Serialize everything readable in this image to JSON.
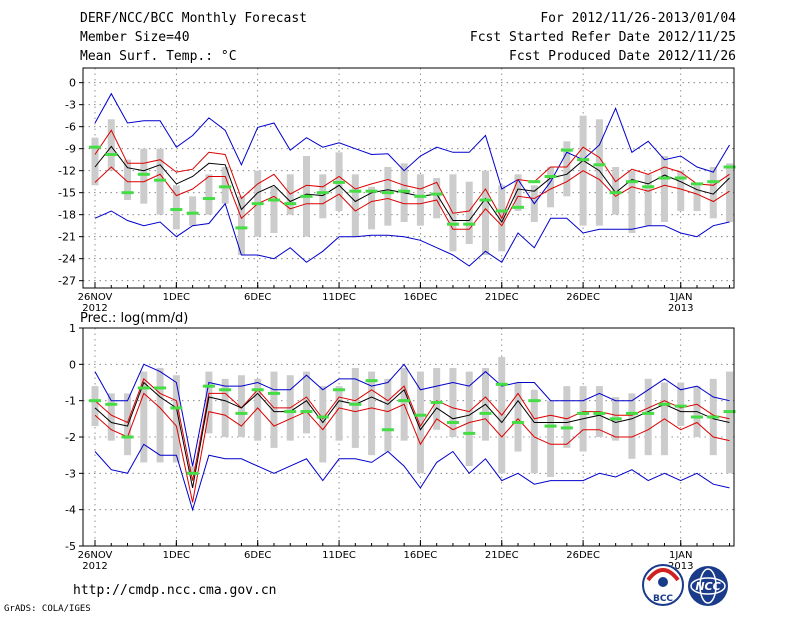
{
  "header": {
    "title": "DERF/NCC/BCC Monthly Forecast",
    "member": "Member Size=40",
    "variable": "Mean Surf. Temp.: °C",
    "period": "For 2012/11/26-2013/01/04",
    "start": "Fcst Started Refer Date 2012/11/25",
    "produced": "Fcst Produced Date 2012/11/26"
  },
  "footer": {
    "url": "http://cmdp.ncc.cma.gov.cn",
    "grads": "GrADS: COLA/IGES"
  },
  "logos": {
    "bcc": "BCC",
    "ncc": "NCC"
  },
  "colors": {
    "max_min": "#0000cc",
    "spread": "#dd0000",
    "mean": "#000000",
    "obs": "#44dd44",
    "bars": "#cccccc"
  },
  "chart_data": [
    {
      "type": "line",
      "title": "Mean Surf. Temp.: °C",
      "ylim": [
        -28,
        2
      ],
      "yticks": [
        0,
        -3,
        -6,
        -9,
        -12,
        -15,
        -18,
        -21,
        -24,
        -27
      ],
      "xtick_days": [
        1,
        6,
        11,
        16,
        21,
        26,
        31,
        37
      ],
      "xtick_labels": [
        "26NOV",
        "1DEC",
        "6DEC",
        "11DEC",
        "16DEC",
        "21DEC",
        "26DEC",
        "1JAN"
      ],
      "year_labels": [
        {
          "day": 1,
          "label": "2012"
        },
        {
          "day": 37,
          "label": "2013"
        }
      ],
      "days": 40,
      "series": [
        {
          "name": "max",
          "values": [
            -5.5,
            -1.5,
            -5.5,
            -5.2,
            -5.2,
            -8.8,
            -7.2,
            -4.8,
            -6.5,
            -11.2,
            -6.1,
            -5.5,
            -9.2,
            -7.5,
            -8.8,
            -8.2,
            -9.0,
            -9.8,
            -9.7,
            -12.0,
            -10.0,
            -8.8,
            -9.5,
            -9.5,
            -7.2,
            -14.5,
            -13.2,
            -16.5,
            -13.5,
            -9.5,
            -10.5,
            -8.5,
            -3.5,
            -9.5,
            -8.0,
            -10.5,
            -10.0,
            -11.5,
            -12.2,
            -8.5
          ]
        },
        {
          "name": "upper",
          "values": [
            -9.8,
            -6.5,
            -11.0,
            -11.0,
            -10.5,
            -12.2,
            -11.8,
            -9.5,
            -9.8,
            -15.8,
            -13.8,
            -12.5,
            -15.2,
            -14.0,
            -14.2,
            -12.8,
            -14.5,
            -13.8,
            -13.2,
            -14.0,
            -14.5,
            -13.6,
            -17.8,
            -17.5,
            -14.5,
            -18.5,
            -13.2,
            -13.5,
            -11.5,
            -11.5,
            -8.8,
            -10.2,
            -13.5,
            -11.8,
            -12.5,
            -11.5,
            -12.2,
            -13.8,
            -14.0,
            -12.5
          ]
        },
        {
          "name": "mean",
          "values": [
            -11.5,
            -8.7,
            -11.6,
            -12.0,
            -11.2,
            -13.8,
            -12.8,
            -11.0,
            -11.2,
            -17.3,
            -15.0,
            -14.0,
            -16.2,
            -15.2,
            -15.4,
            -14.0,
            -16.2,
            -15.0,
            -14.6,
            -15.0,
            -15.5,
            -15.2,
            -18.8,
            -18.8,
            -15.8,
            -19.0,
            -14.5,
            -14.8,
            -13.0,
            -12.5,
            -10.6,
            -12.0,
            -15.0,
            -13.2,
            -13.8,
            -12.6,
            -13.5,
            -14.6,
            -15.2,
            -13.0
          ]
        },
        {
          "name": "lower",
          "values": [
            -13.6,
            -11.5,
            -13.5,
            -13.5,
            -12.5,
            -15.4,
            -14.5,
            -12.8,
            -12.8,
            -18.5,
            -16.5,
            -15.5,
            -17.2,
            -16.5,
            -16.5,
            -15.2,
            -17.5,
            -16.2,
            -15.8,
            -16.5,
            -16.5,
            -16.0,
            -20.0,
            -20.0,
            -17.2,
            -19.5,
            -15.5,
            -15.8,
            -14.5,
            -13.5,
            -12.0,
            -13.2,
            -15.5,
            -14.2,
            -14.8,
            -14.0,
            -14.5,
            -15.2,
            -16.2,
            -14.8
          ]
        },
        {
          "name": "min",
          "values": [
            -18.5,
            -17.5,
            -18.8,
            -19.5,
            -19.0,
            -21.0,
            -19.5,
            -19.2,
            -16.5,
            -23.5,
            -23.5,
            -24.0,
            -22.5,
            -24.5,
            -23.0,
            -21.0,
            -21.0,
            -20.8,
            -20.8,
            -21.0,
            -21.5,
            -22.5,
            -23.5,
            -25.0,
            -23.0,
            -24.5,
            -20.5,
            -22.5,
            -18.5,
            -18.5,
            -20.5,
            -20.0,
            -20.0,
            -20.0,
            -19.5,
            -19.5,
            -20.5,
            -21.0,
            -19.5,
            -19.0
          ]
        },
        {
          "name": "obs",
          "values": [
            -8.8,
            -9.8,
            -15.0,
            -12.5,
            -13.3,
            -17.3,
            -17.8,
            -15.8,
            -14.2,
            -19.8,
            -16.5,
            -16.0,
            -16.5,
            -15.5,
            -15.0,
            -13.6,
            -14.8,
            -14.8,
            -15.0,
            -14.8,
            -15.5,
            -15.2,
            -19.3,
            -19.3,
            -16.0,
            -17.5,
            -17.0,
            -13.5,
            -12.8,
            -9.2,
            -10.5,
            -11.2,
            -15.0,
            -13.5,
            -14.2,
            -13.0,
            -13.0,
            -13.8,
            -13.5,
            -11.5
          ]
        },
        {
          "name": "bar_top",
          "values": [
            -7.5,
            -5.0,
            -10.5,
            -9.0,
            -9.0,
            -14.0,
            -15.5,
            -12.5,
            -11.5,
            -15.5,
            -12.0,
            -14.2,
            -12.5,
            -10.0,
            -12.5,
            -9.5,
            -12.5,
            -14.2,
            -11.5,
            -11.0,
            -12.5,
            -13.0,
            -12.5,
            -13.5,
            -12.0,
            -14.0,
            -12.5,
            -14.0,
            -11.5,
            -8.0,
            -4.5,
            -5.0,
            -11.5,
            -12.0,
            -12.5,
            -10.0,
            -12.0,
            -14.0,
            -11.5,
            -11.0
          ]
        },
        {
          "name": "bar_bottom",
          "values": [
            -14.0,
            -12.0,
            -16.0,
            -16.5,
            -18.0,
            -20.0,
            -19.5,
            -18.0,
            -16.5,
            -23.5,
            -21.0,
            -20.5,
            -18.0,
            -21.0,
            -18.5,
            -17.5,
            -21.0,
            -20.0,
            -19.5,
            -19.0,
            -19.5,
            -18.5,
            -23.0,
            -22.0,
            -23.5,
            -23.0,
            -17.5,
            -19.0,
            -17.0,
            -15.5,
            -19.5,
            -19.5,
            -18.0,
            -20.5,
            -19.5,
            -19.0,
            -17.5,
            -17.5,
            -18.5,
            -19.0
          ]
        }
      ]
    },
    {
      "type": "line",
      "title": "Prec.: log(mm/d)",
      "ylim": [
        -5,
        1
      ],
      "yticks": [
        1,
        0,
        -1,
        -2,
        -3,
        -4,
        -5
      ],
      "xtick_days": [
        1,
        6,
        11,
        16,
        21,
        26,
        31,
        37
      ],
      "xtick_labels": [
        "26NOV",
        "1DEC",
        "6DEC",
        "11DEC",
        "16DEC",
        "21DEC",
        "26DEC",
        "1JAN"
      ],
      "year_labels": [
        {
          "day": 1,
          "label": "2012"
        },
        {
          "day": 37,
          "label": "2013"
        }
      ],
      "days": 40,
      "series": [
        {
          "name": "max",
          "values": [
            -0.2,
            -1.0,
            -1.0,
            0.0,
            -0.2,
            -0.5,
            -2.8,
            -0.5,
            -0.6,
            -0.6,
            -0.5,
            -0.7,
            -0.7,
            -0.3,
            -0.7,
            -0.4,
            -0.4,
            -0.6,
            -0.5,
            0.0,
            -0.7,
            -0.6,
            -0.5,
            -0.6,
            -0.2,
            -0.6,
            -0.5,
            -0.5,
            -1.0,
            -1.0,
            -1.0,
            -0.8,
            -1.0,
            -1.0,
            -0.7,
            -0.4,
            -0.7,
            -0.6,
            -0.9,
            -1.0
          ]
        },
        {
          "name": "upper",
          "values": [
            -1.0,
            -1.4,
            -1.6,
            -0.4,
            -0.8,
            -1.0,
            -3.2,
            -0.8,
            -0.8,
            -1.2,
            -0.7,
            -1.2,
            -1.2,
            -0.9,
            -1.5,
            -0.9,
            -1.0,
            -0.7,
            -1.0,
            -0.6,
            -1.7,
            -1.0,
            -1.2,
            -1.3,
            -0.9,
            -1.4,
            -0.8,
            -1.5,
            -1.4,
            -1.5,
            -1.3,
            -1.3,
            -1.4,
            -1.4,
            -1.2,
            -1.0,
            -1.2,
            -1.1,
            -1.4,
            -1.5
          ]
        },
        {
          "name": "mean",
          "values": [
            -1.2,
            -1.6,
            -1.7,
            -0.5,
            -0.9,
            -1.2,
            -3.4,
            -0.9,
            -1.0,
            -1.2,
            -0.8,
            -1.3,
            -1.3,
            -1.0,
            -1.6,
            -1.0,
            -1.1,
            -0.9,
            -1.1,
            -0.7,
            -1.8,
            -1.2,
            -1.5,
            -1.4,
            -1.1,
            -1.6,
            -1.0,
            -1.6,
            -1.6,
            -1.6,
            -1.5,
            -1.4,
            -1.6,
            -1.5,
            -1.3,
            -1.1,
            -1.3,
            -1.3,
            -1.5,
            -1.6
          ]
        },
        {
          "name": "lower",
          "values": [
            -1.4,
            -1.8,
            -2.0,
            -0.8,
            -1.2,
            -1.7,
            -3.8,
            -1.3,
            -1.4,
            -1.7,
            -1.2,
            -1.7,
            -1.5,
            -1.3,
            -1.8,
            -1.2,
            -1.3,
            -1.2,
            -1.3,
            -1.1,
            -2.2,
            -1.5,
            -1.8,
            -1.6,
            -1.5,
            -2.0,
            -1.5,
            -2.0,
            -2.2,
            -2.2,
            -1.8,
            -1.8,
            -2.0,
            -2.0,
            -1.8,
            -1.5,
            -1.8,
            -1.6,
            -2.0,
            -2.1
          ]
        },
        {
          "name": "min",
          "values": [
            -2.4,
            -2.9,
            -3.0,
            -2.2,
            -2.5,
            -2.5,
            -4.0,
            -2.5,
            -2.6,
            -2.6,
            -2.8,
            -3.0,
            -2.8,
            -2.6,
            -3.2,
            -2.6,
            -2.6,
            -2.7,
            -2.4,
            -2.8,
            -3.4,
            -2.7,
            -2.4,
            -3.0,
            -2.6,
            -3.2,
            -3.0,
            -3.3,
            -3.2,
            -3.2,
            -3.2,
            -3.0,
            -3.1,
            -2.9,
            -3.2,
            -3.0,
            -3.2,
            -3.0,
            -3.3,
            -3.4
          ]
        },
        {
          "name": "obs",
          "values": [
            -1.0,
            -1.1,
            -2.0,
            -0.65,
            -0.65,
            -1.2,
            -3.0,
            -0.6,
            -0.7,
            -1.35,
            -0.7,
            -0.8,
            -1.3,
            -1.3,
            -1.45,
            -0.7,
            -1.1,
            -0.45,
            -1.8,
            -1.0,
            -1.4,
            -1.05,
            -1.6,
            -1.9,
            -1.35,
            -0.55,
            -1.6,
            -1.0,
            -1.7,
            -1.75,
            -1.35,
            -1.35,
            -1.5,
            -1.35,
            -1.35,
            -1.1,
            -1.15,
            -1.45,
            -1.45,
            -1.3
          ]
        },
        {
          "name": "bar_top",
          "values": [
            -0.6,
            -0.8,
            -0.8,
            -0.2,
            -0.1,
            -0.3,
            -2.8,
            -0.2,
            -0.4,
            -0.3,
            -0.4,
            -0.2,
            -0.3,
            -0.2,
            -0.6,
            -0.6,
            -0.1,
            -0.2,
            -0.4,
            -0.1,
            -0.2,
            -0.1,
            -0.1,
            -0.2,
            -0.1,
            0.2,
            -0.5,
            -0.7,
            -1.0,
            -0.6,
            -0.6,
            -0.6,
            -0.9,
            -0.8,
            -0.4,
            -0.5,
            -0.5,
            -0.6,
            -0.4,
            -0.2
          ]
        },
        {
          "name": "bar_bottom",
          "values": [
            -1.7,
            -2.1,
            -2.5,
            -2.7,
            -2.7,
            -2.7,
            -3.0,
            -1.9,
            -2.0,
            -2.0,
            -2.1,
            -2.3,
            -2.1,
            -1.9,
            -2.7,
            -2.1,
            -2.3,
            -2.5,
            -2.4,
            -2.1,
            -3.0,
            -1.8,
            -2.0,
            -2.8,
            -2.1,
            -3.0,
            -2.4,
            -3.0,
            -3.1,
            -2.3,
            -2.4,
            -2.0,
            -2.1,
            -2.6,
            -2.5,
            -2.5,
            -1.7,
            -2.0,
            -2.5,
            -3.0
          ]
        }
      ]
    }
  ]
}
